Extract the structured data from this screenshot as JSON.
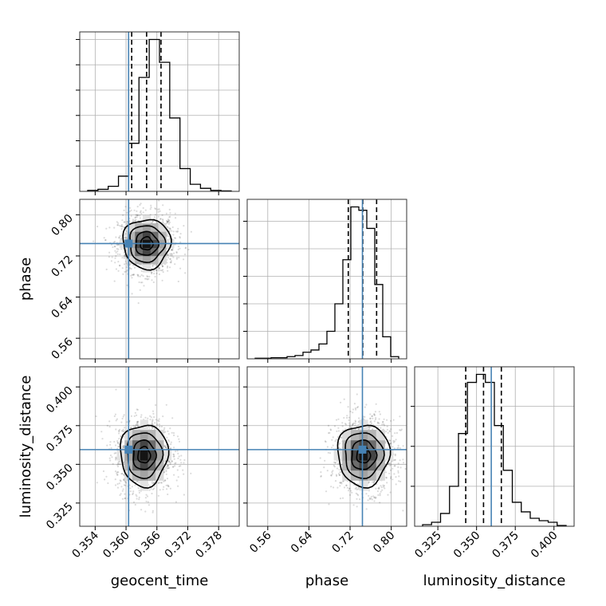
{
  "chart_data": {
    "type": "corner",
    "parameters": [
      {
        "name": "geocent_time",
        "range": [
          0.351,
          0.382
        ],
        "ticks": [
          "0.354",
          "0.360",
          "0.366",
          "0.372",
          "0.378"
        ],
        "truth": 0.3605,
        "quantiles": [
          0.3611,
          0.364,
          0.3668
        ]
      },
      {
        "name": "phase",
        "range": [
          0.52,
          0.83
        ],
        "ticks": [
          "0.56",
          "0.64",
          "0.72",
          "0.80"
        ],
        "truth": 0.744,
        "quantiles": [
          0.7165,
          0.7447,
          0.7716
        ]
      },
      {
        "name": "luminosity_distance",
        "range": [
          0.31,
          0.413
        ],
        "ticks": [
          "0.325",
          "0.350",
          "0.375",
          "0.400"
        ],
        "truth": 0.3595,
        "quantiles": [
          0.343,
          0.3545,
          0.366
        ]
      }
    ],
    "histograms": [
      {
        "parameter": "geocent_time",
        "values": [
          2,
          4,
          10,
          30,
          95,
          225,
          300,
          255,
          145,
          45,
          14,
          6,
          2,
          1
        ]
      },
      {
        "parameter": "phase",
        "values": [
          1,
          1,
          2,
          2,
          4,
          6,
          12,
          16,
          27,
          50,
          100,
          180,
          276,
          270,
          237,
          135,
          40,
          4
        ]
      },
      {
        "parameter": "luminosity_distance",
        "values": [
          2,
          5,
          16,
          50,
          116,
          180,
          190,
          180,
          126,
          70,
          30,
          18,
          10,
          7,
          5,
          1
        ]
      }
    ],
    "contours": [
      {
        "x": "geocent_time",
        "y": "phase",
        "center": [
          0.364,
          0.744
        ],
        "sigma": [
          0.0022,
          0.023
        ]
      },
      {
        "x": "geocent_time",
        "y": "luminosity_distance",
        "center": [
          0.3635,
          0.356
        ],
        "sigma": [
          0.0022,
          0.0095
        ]
      },
      {
        "x": "phase",
        "y": "luminosity_distance",
        "center": [
          0.746,
          0.356
        ],
        "sigma": [
          0.024,
          0.0095
        ]
      }
    ],
    "colors": {
      "truth": "#4682b4",
      "hist": "#000000",
      "grid": "#b0b0b0"
    },
    "grid": true
  }
}
